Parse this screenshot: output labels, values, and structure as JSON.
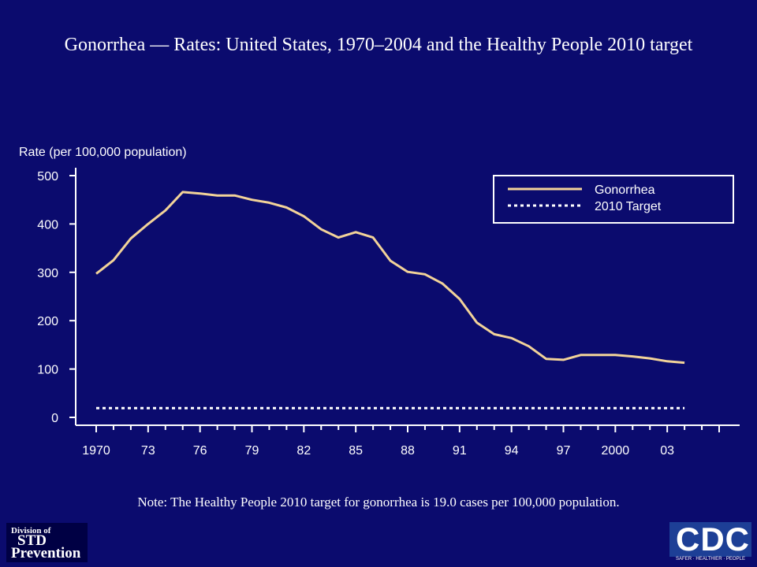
{
  "title": "Gonorrhea — Rates: United States, 1970–2004 and the Healthy People 2010 target",
  "note": "Note: The Healthy People 2010 target for gonorrhea is 19.0 cases per 100,000 population.",
  "logos": {
    "std_line1": "Division of",
    "std_line2": "STD",
    "std_line3": "Prevention",
    "cdc": "CDC",
    "cdc_tagline": "SAFER · HEALTHIER · PEOPLE"
  },
  "chart_data": {
    "type": "line",
    "ylabel": "Rate (per 100,000 population)",
    "xlabel": "",
    "x": [
      1970,
      1971,
      1972,
      1973,
      1974,
      1975,
      1976,
      1977,
      1978,
      1979,
      1980,
      1981,
      1982,
      1983,
      1984,
      1985,
      1986,
      1987,
      1988,
      1989,
      1990,
      1991,
      1992,
      1993,
      1994,
      1995,
      1996,
      1997,
      1998,
      1999,
      2000,
      2001,
      2002,
      2003,
      2004
    ],
    "xlim": [
      1970,
      2006
    ],
    "ylim": [
      0,
      500
    ],
    "yticks": [
      0,
      100,
      200,
      300,
      400,
      500
    ],
    "xtick_labels": [
      {
        "x": 1970,
        "label": "1970"
      },
      {
        "x": 1973,
        "label": "73"
      },
      {
        "x": 1976,
        "label": "76"
      },
      {
        "x": 1979,
        "label": "79"
      },
      {
        "x": 1982,
        "label": "82"
      },
      {
        "x": 1985,
        "label": "85"
      },
      {
        "x": 1988,
        "label": "88"
      },
      {
        "x": 1991,
        "label": "91"
      },
      {
        "x": 1994,
        "label": "94"
      },
      {
        "x": 1997,
        "label": "97"
      },
      {
        "x": 2000,
        "label": "2000"
      },
      {
        "x": 2003,
        "label": "03"
      }
    ],
    "series": [
      {
        "name": "Gonorrhea",
        "color": "#f2d399",
        "style": "solid",
        "values": [
          297,
          325,
          370,
          400,
          428,
          466,
          463,
          459,
          459,
          450,
          444,
          434,
          416,
          389,
          372,
          383,
          372,
          324,
          301,
          296,
          277,
          245,
          196,
          172,
          164,
          147,
          121,
          119,
          129,
          129,
          129,
          126,
          122,
          116,
          113
        ]
      },
      {
        "name": "2010 Target",
        "color": "#ffffff",
        "style": "dotted",
        "values": [
          19.0,
          19.0,
          19.0,
          19.0,
          19.0,
          19.0,
          19.0,
          19.0,
          19.0,
          19.0,
          19.0,
          19.0,
          19.0,
          19.0,
          19.0,
          19.0,
          19.0,
          19.0,
          19.0,
          19.0,
          19.0,
          19.0,
          19.0,
          19.0,
          19.0,
          19.0,
          19.0,
          19.0,
          19.0,
          19.0,
          19.0,
          19.0,
          19.0,
          19.0,
          19.0
        ]
      }
    ],
    "legend_position": "top-right",
    "grid": false
  }
}
